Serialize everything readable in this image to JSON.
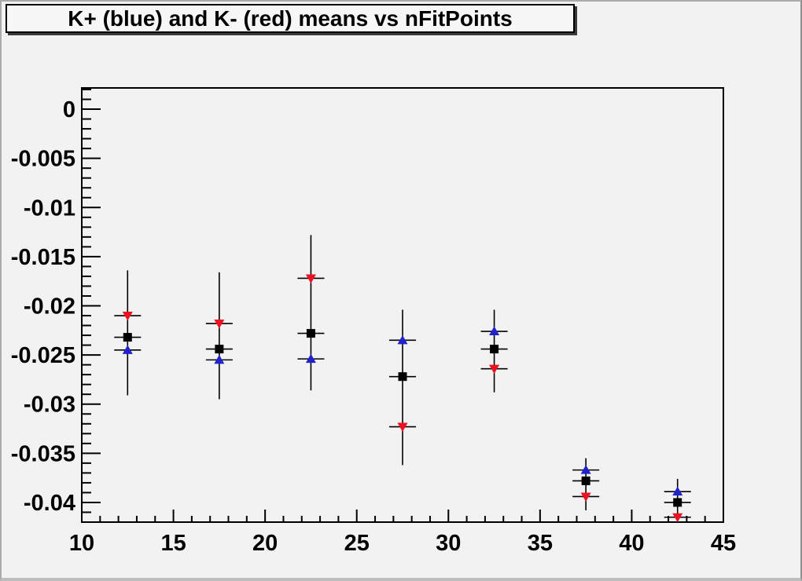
{
  "title": "K+ (blue) and K- (red) means vs nFitPoints",
  "colors": {
    "canvas_bg": "#f2f2f2",
    "frame_line": "#000000",
    "kplus_blue": "#2222cc",
    "kminus_red": "#ee1122",
    "combined_black": "#000000"
  },
  "chart_data": {
    "type": "scatter",
    "title": "K+ (blue) and K- (red) means vs nFitPoints",
    "xlabel": "",
    "ylabel": "",
    "xlim": [
      10,
      45
    ],
    "ylim": [
      -0.042,
      0.00216
    ],
    "grid": false,
    "legend": "none",
    "x_major_ticks": [
      10,
      15,
      20,
      25,
      30,
      35,
      40,
      45
    ],
    "x_tick_labels": [
      "10",
      "15",
      "20",
      "25",
      "30",
      "35",
      "40",
      "45"
    ],
    "x_minor_step": 1,
    "y_major_ticks": [
      0,
      -0.005,
      -0.01,
      -0.015,
      -0.02,
      -0.025,
      -0.03,
      -0.035,
      -0.04
    ],
    "y_tick_labels": [
      "0",
      "-0.005",
      "-0.01",
      "-0.015",
      "-0.02",
      "-0.025",
      "-0.03",
      "-0.035",
      "-0.04"
    ],
    "y_minor_step": 0.001,
    "x": [
      12.5,
      17.5,
      22.5,
      27.5,
      32.5,
      37.5,
      42.5
    ],
    "series": [
      {
        "name": "K+ (blue)",
        "marker": "triangle-up",
        "color": "#2222cc",
        "values": [
          -0.0245,
          -0.0255,
          -0.0254,
          -0.0235,
          -0.0226,
          -0.0367,
          -0.0389
        ]
      },
      {
        "name": "K- (red)",
        "marker": "triangle-down",
        "color": "#ee1122",
        "values": [
          -0.021,
          -0.0218,
          -0.0172,
          -0.0323,
          -0.0264,
          -0.0394,
          -0.0415
        ]
      },
      {
        "name": "combined (black)",
        "marker": "square",
        "color": "#000000",
        "values": [
          -0.0232,
          -0.0244,
          -0.0228,
          -0.0272,
          -0.0244,
          -0.0378,
          -0.04
        ]
      }
    ],
    "error_bars": [
      {
        "x": 12.5,
        "ylow": -0.0291,
        "yhigh": -0.0164
      },
      {
        "x": 17.5,
        "ylow": -0.0295,
        "yhigh": -0.0166
      },
      {
        "x": 22.5,
        "ylow": -0.0286,
        "yhigh": -0.0128
      },
      {
        "x": 27.5,
        "ylow": -0.0362,
        "yhigh": -0.0204
      },
      {
        "x": 32.5,
        "ylow": -0.0288,
        "yhigh": -0.0204
      },
      {
        "x": 37.5,
        "ylow": -0.0408,
        "yhigh": -0.0355
      },
      {
        "x": 42.5,
        "ylow": -0.0422,
        "yhigh": -0.0376
      }
    ],
    "xerr_halfwidth": 0.73
  }
}
